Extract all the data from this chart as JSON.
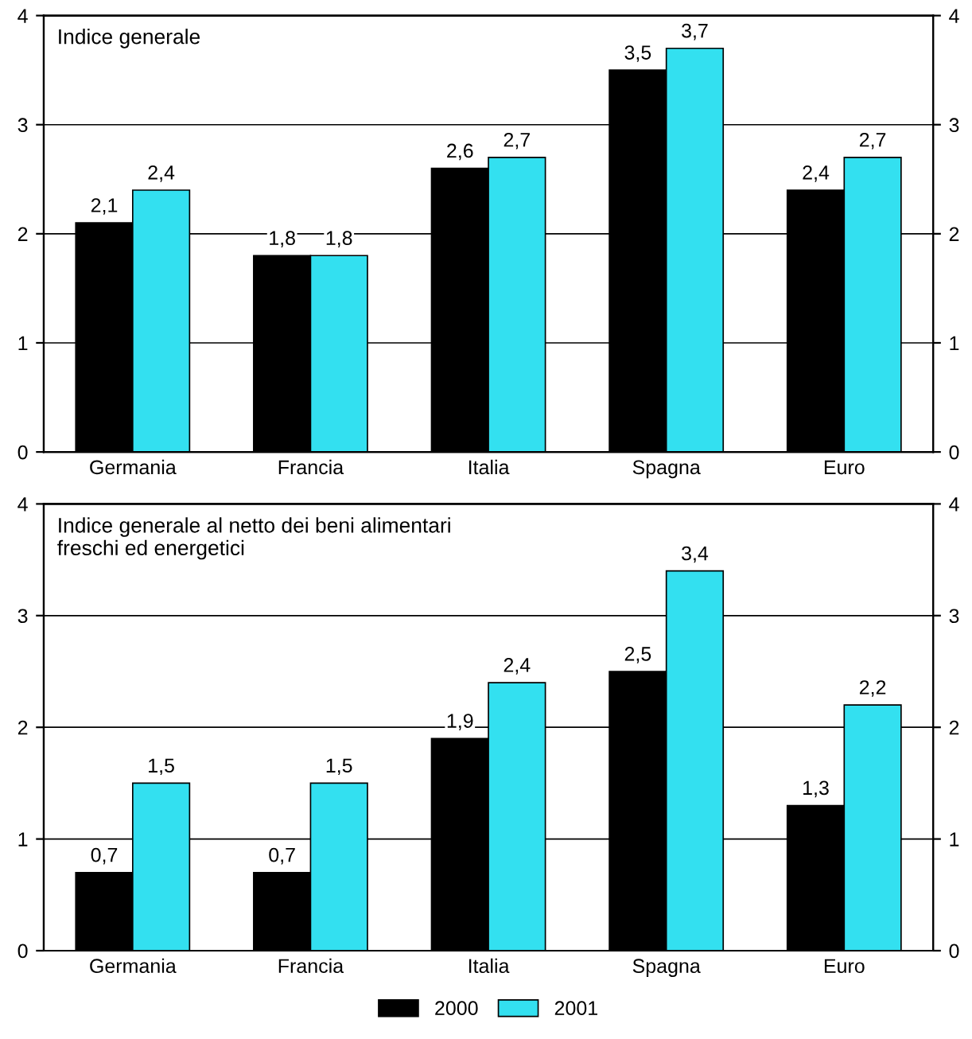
{
  "chart_data": [
    {
      "type": "bar",
      "title": "Indice generale",
      "categories": [
        "Germania",
        "Francia",
        "Italia",
        "Spagna",
        "Euro"
      ],
      "series": [
        {
          "color": "#000000",
          "values": [
            2.1,
            1.8,
            2.6,
            3.5,
            2.4
          ],
          "value_labels": [
            "2,1",
            "1,8",
            "2,6",
            "3,5",
            "2,4"
          ]
        },
        {
          "color": "#33e0f0",
          "values": [
            2.4,
            1.8,
            2.7,
            3.7,
            2.7
          ],
          "value_labels": [
            "2,4",
            "1,8",
            "2,7",
            "3,7",
            "2,7"
          ]
        }
      ],
      "ylim": [
        0,
        4
      ],
      "yticks": [
        0,
        1,
        2,
        3,
        4
      ],
      "y2lim": [
        0,
        4
      ],
      "y2ticks": [
        0,
        1,
        2,
        3,
        4
      ],
      "grid": "y"
    },
    {
      "type": "bar",
      "title": "Indice generale al netto dei beni alimentari\nfreschi ed energetici",
      "categories": [
        "Germania",
        "Francia",
        "Italia",
        "Spagna",
        "Euro"
      ],
      "series": [
        {
          "name": "2000",
          "color": "#000000",
          "values": [
            0.7,
            0.7,
            1.9,
            2.5,
            1.3
          ],
          "value_labels": [
            "0,7",
            "0,7",
            "1,9",
            "2,5",
            "1,3"
          ]
        },
        {
          "name": "2001",
          "color": "#33e0f0",
          "values": [
            1.5,
            1.5,
            2.4,
            3.4,
            2.2
          ],
          "value_labels": [
            "1,5",
            "1,5",
            "2,4",
            "3,4",
            "2,2"
          ]
        }
      ],
      "ylim": [
        0,
        4
      ],
      "yticks": [
        0,
        1,
        2,
        3,
        4
      ],
      "y2lim": [
        0,
        4
      ],
      "y2ticks": [
        0,
        1,
        2,
        3,
        4
      ],
      "grid": "y",
      "legend": "bottom"
    }
  ]
}
